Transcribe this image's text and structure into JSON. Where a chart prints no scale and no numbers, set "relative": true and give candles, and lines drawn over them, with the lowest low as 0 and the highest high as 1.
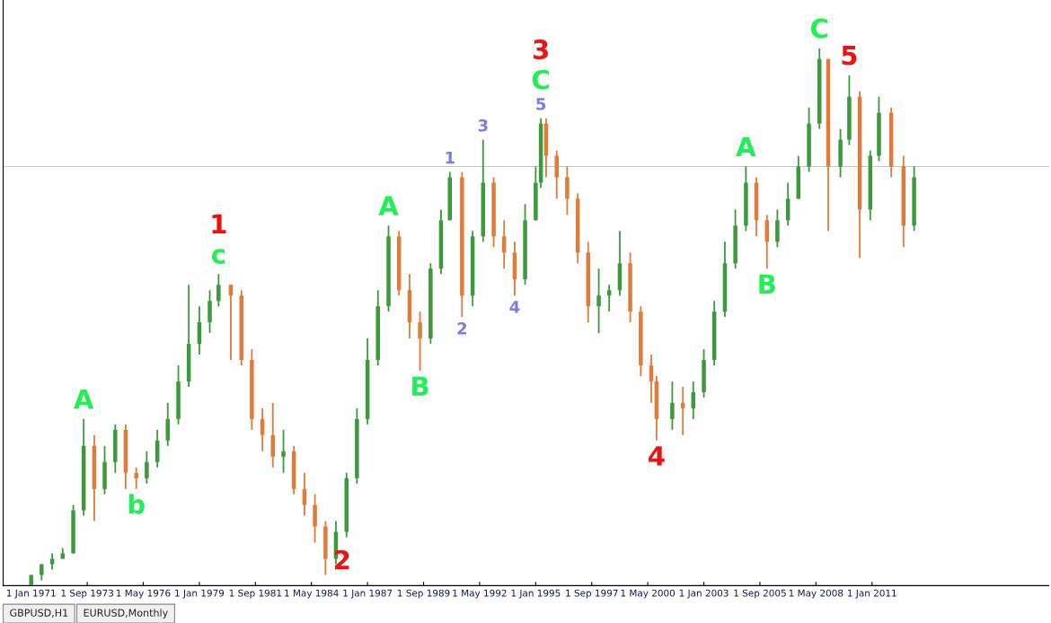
{
  "chart_data": {
    "type": "candlestick",
    "relative": true,
    "x": [
      "1971-01",
      "1971-07",
      "1972-01",
      "1972-07",
      "1973-01",
      "1973-07",
      "1974-01",
      "1974-07",
      "1975-01",
      "1975-07",
      "1976-01",
      "1976-07",
      "1977-01",
      "1977-07",
      "1978-01",
      "1978-07",
      "1979-01",
      "1979-07",
      "1979-12",
      "1980-07",
      "1981-01",
      "1981-07",
      "1982-01",
      "1982-07",
      "1983-01",
      "1983-07",
      "1984-01",
      "1984-07",
      "1985-01",
      "1985-07",
      "1986-01",
      "1986-07",
      "1987-01",
      "1987-07",
      "1988-01",
      "1988-07",
      "1989-01",
      "1989-07",
      "1990-01",
      "1990-07",
      "1990-12",
      "1991-07",
      "1992-01",
      "1992-07",
      "1993-01",
      "1993-07",
      "1994-01",
      "1994-07",
      "1995-01",
      "1995-04",
      "1995-07",
      "1996-01",
      "1996-07",
      "1997-01",
      "1997-07",
      "1998-01",
      "1998-07",
      "1999-01",
      "1999-07",
      "2000-01",
      "2000-07",
      "2000-10",
      "2001-07",
      "2002-01",
      "2002-07",
      "2003-01",
      "2003-07",
      "2004-01",
      "2004-07",
      "2005-01",
      "2005-07",
      "2006-01",
      "2006-07",
      "2007-01",
      "2007-07",
      "2008-01",
      "2008-07",
      "2008-12",
      "2009-07",
      "2009-12",
      "2010-06",
      "2010-12",
      "2011-05",
      "2011-12",
      "2012-07",
      "2013-01"
    ],
    "ohlc": [
      [
        0.0,
        0.02,
        0.0,
        0.02
      ],
      [
        0.02,
        0.04,
        0.01,
        0.04
      ],
      [
        0.04,
        0.06,
        0.03,
        0.05
      ],
      [
        0.05,
        0.07,
        0.05,
        0.06
      ],
      [
        0.06,
        0.15,
        0.06,
        0.14
      ],
      [
        0.14,
        0.31,
        0.13,
        0.26
      ],
      [
        0.26,
        0.28,
        0.12,
        0.18
      ],
      [
        0.18,
        0.26,
        0.17,
        0.23
      ],
      [
        0.23,
        0.3,
        0.21,
        0.29
      ],
      [
        0.29,
        0.3,
        0.18,
        0.21
      ],
      [
        0.21,
        0.22,
        0.18,
        0.2
      ],
      [
        0.2,
        0.25,
        0.19,
        0.23
      ],
      [
        0.23,
        0.29,
        0.22,
        0.27
      ],
      [
        0.27,
        0.34,
        0.26,
        0.31
      ],
      [
        0.31,
        0.41,
        0.3,
        0.38
      ],
      [
        0.38,
        0.56,
        0.37,
        0.45
      ],
      [
        0.45,
        0.52,
        0.43,
        0.49
      ],
      [
        0.49,
        0.55,
        0.47,
        0.53
      ],
      [
        0.53,
        0.58,
        0.52,
        0.56
      ],
      [
        0.56,
        0.56,
        0.42,
        0.54
      ],
      [
        0.54,
        0.55,
        0.41,
        0.42
      ],
      [
        0.42,
        0.44,
        0.29,
        0.31
      ],
      [
        0.31,
        0.33,
        0.25,
        0.28
      ],
      [
        0.28,
        0.34,
        0.22,
        0.24
      ],
      [
        0.24,
        0.29,
        0.21,
        0.25
      ],
      [
        0.25,
        0.26,
        0.17,
        0.18
      ],
      [
        0.18,
        0.21,
        0.13,
        0.15
      ],
      [
        0.15,
        0.17,
        0.08,
        0.11
      ],
      [
        0.11,
        0.12,
        0.02,
        0.05
      ],
      [
        0.05,
        0.12,
        0.04,
        0.1
      ],
      [
        0.1,
        0.21,
        0.09,
        0.2
      ],
      [
        0.2,
        0.33,
        0.19,
        0.31
      ],
      [
        0.31,
        0.46,
        0.3,
        0.42
      ],
      [
        0.42,
        0.55,
        0.41,
        0.52
      ],
      [
        0.52,
        0.67,
        0.51,
        0.65
      ],
      [
        0.65,
        0.66,
        0.54,
        0.55
      ],
      [
        0.55,
        0.58,
        0.46,
        0.49
      ],
      [
        0.49,
        0.51,
        0.4,
        0.46
      ],
      [
        0.46,
        0.6,
        0.45,
        0.59
      ],
      [
        0.59,
        0.7,
        0.58,
        0.68
      ],
      [
        0.68,
        0.77,
        0.68,
        0.76
      ],
      [
        0.76,
        0.77,
        0.5,
        0.54
      ],
      [
        0.54,
        0.66,
        0.52,
        0.65
      ],
      [
        0.65,
        0.83,
        0.64,
        0.75
      ],
      [
        0.75,
        0.76,
        0.63,
        0.65
      ],
      [
        0.65,
        0.68,
        0.59,
        0.62
      ],
      [
        0.62,
        0.64,
        0.54,
        0.57
      ],
      [
        0.57,
        0.71,
        0.56,
        0.68
      ],
      [
        0.68,
        0.78,
        0.68,
        0.75
      ],
      [
        0.75,
        0.87,
        0.74,
        0.86
      ],
      [
        0.86,
        0.87,
        0.76,
        0.8
      ],
      [
        0.8,
        0.81,
        0.72,
        0.76
      ],
      [
        0.76,
        0.78,
        0.69,
        0.72
      ],
      [
        0.72,
        0.73,
        0.6,
        0.62
      ],
      [
        0.62,
        0.64,
        0.49,
        0.52
      ],
      [
        0.52,
        0.59,
        0.47,
        0.54
      ],
      [
        0.54,
        0.56,
        0.51,
        0.55
      ],
      [
        0.55,
        0.66,
        0.54,
        0.6
      ],
      [
        0.6,
        0.62,
        0.49,
        0.51
      ],
      [
        0.51,
        0.52,
        0.39,
        0.41
      ],
      [
        0.41,
        0.43,
        0.34,
        0.38
      ],
      [
        0.38,
        0.39,
        0.27,
        0.31
      ],
      [
        0.31,
        0.38,
        0.29,
        0.34
      ],
      [
        0.34,
        0.37,
        0.28,
        0.33
      ],
      [
        0.33,
        0.38,
        0.31,
        0.36
      ],
      [
        0.36,
        0.44,
        0.35,
        0.42
      ],
      [
        0.42,
        0.53,
        0.41,
        0.51
      ],
      [
        0.51,
        0.64,
        0.5,
        0.6
      ],
      [
        0.6,
        0.7,
        0.59,
        0.67
      ],
      [
        0.67,
        0.78,
        0.66,
        0.75
      ],
      [
        0.75,
        0.76,
        0.65,
        0.68
      ],
      [
        0.68,
        0.69,
        0.59,
        0.64
      ],
      [
        0.64,
        0.7,
        0.63,
        0.68
      ],
      [
        0.68,
        0.75,
        0.67,
        0.72
      ],
      [
        0.72,
        0.8,
        0.72,
        0.78
      ],
      [
        0.78,
        0.89,
        0.77,
        0.86
      ],
      [
        0.86,
        1.0,
        0.85,
        0.98
      ],
      [
        0.98,
        0.98,
        0.66,
        0.78
      ],
      [
        0.78,
        0.85,
        0.76,
        0.83
      ],
      [
        0.83,
        0.95,
        0.82,
        0.91
      ],
      [
        0.91,
        0.92,
        0.61,
        0.7
      ],
      [
        0.7,
        0.81,
        0.68,
        0.8
      ],
      [
        0.8,
        0.91,
        0.79,
        0.88
      ],
      [
        0.88,
        0.89,
        0.76,
        0.78
      ],
      [
        0.78,
        0.8,
        0.63,
        0.67
      ],
      [
        0.67,
        0.78,
        0.66,
        0.76
      ]
    ],
    "colors": [
      "#3c9a3c",
      "#3c9a3c",
      "#3c9a3c",
      "#3c9a3c",
      "#3c9a3c",
      "#3c9a3c",
      "#e07b39",
      "#3c9a3c",
      "#3c9a3c",
      "#e07b39",
      "#e07b39",
      "#3c9a3c",
      "#3c9a3c",
      "#3c9a3c",
      "#3c9a3c",
      "#3c9a3c",
      "#3c9a3c",
      "#3c9a3c",
      "#3c9a3c",
      "#e07b39",
      "#e07b39",
      "#e07b39",
      "#e07b39",
      "#e07b39",
      "#3c9a3c",
      "#e07b39",
      "#e07b39",
      "#e07b39",
      "#e07b39",
      "#3c9a3c",
      "#3c9a3c",
      "#3c9a3c",
      "#3c9a3c",
      "#3c9a3c",
      "#3c9a3c",
      "#e07b39",
      "#e07b39",
      "#e07b39",
      "#3c9a3c",
      "#3c9a3c",
      "#3c9a3c",
      "#e07b39",
      "#3c9a3c",
      "#3c9a3c",
      "#e07b39",
      "#e07b39",
      "#e07b39",
      "#3c9a3c",
      "#3c9a3c",
      "#3c9a3c",
      "#e07b39",
      "#e07b39",
      "#e07b39",
      "#e07b39",
      "#e07b39",
      "#3c9a3c",
      "#3c9a3c",
      "#3c9a3c",
      "#e07b39",
      "#e07b39",
      "#e07b39",
      "#e07b39",
      "#3c9a3c",
      "#e07b39",
      "#3c9a3c",
      "#3c9a3c",
      "#3c9a3c",
      "#3c9a3c",
      "#3c9a3c",
      "#3c9a3c",
      "#e07b39",
      "#e07b39",
      "#3c9a3c",
      "#3c9a3c",
      "#3c9a3c",
      "#3c9a3c",
      "#3c9a3c",
      "#e07b39",
      "#3c9a3c",
      "#3c9a3c",
      "#e07b39",
      "#3c9a3c",
      "#3c9a3c",
      "#e07b39",
      "#e07b39",
      "#3c9a3c"
    ],
    "xlim": [
      "1969-09",
      "2019-06"
    ],
    "xticks": [
      {
        "value": "1971-01-01",
        "label": "1 Jan 1971"
      },
      {
        "value": "1973-09-01",
        "label": "1 Sep 1973"
      },
      {
        "value": "1976-05-01",
        "label": "1 May 1976"
      },
      {
        "value": "1979-01-01",
        "label": "1 Jan 1979"
      },
      {
        "value": "1981-09-01",
        "label": "1 Sep 1981"
      },
      {
        "value": "1984-05-01",
        "label": "1 May 1984"
      },
      {
        "value": "1987-01-01",
        "label": "1 Jan 1987"
      },
      {
        "value": "1989-09-01",
        "label": "1 Sep 1989"
      },
      {
        "value": "1992-05-01",
        "label": "1 May 1992"
      },
      {
        "value": "1995-01-01",
        "label": "1 Jan 1995"
      },
      {
        "value": "1997-09-01",
        "label": "1 Sep 1997"
      },
      {
        "value": "2000-05-01",
        "label": "1 May 2000"
      },
      {
        "value": "2003-01-01",
        "label": "1 Jan 2003"
      },
      {
        "value": "2005-09-01",
        "label": "1 Sep 2005"
      },
      {
        "value": "2008-05-01",
        "label": "1 May 2008"
      },
      {
        "value": "2011-01-01",
        "label": "1 Jan 2011"
      }
    ],
    "ref_lines": [
      {
        "axis": "y",
        "value": 0.78,
        "color": "#c8c8c8"
      }
    ],
    "tick_labels": "x",
    "annotations": [
      {
        "text": "A",
        "x": "1973-07",
        "y": 0.31
      },
      {
        "text": "b",
        "x": "1976-01",
        "y": 0.18
      },
      {
        "text": "c",
        "x": "1979-12",
        "y": 0.58
      },
      {
        "text": "1",
        "x": "1979-12",
        "y": 0.58
      },
      {
        "text": "2",
        "x": "1985-01",
        "y": 0.02
      },
      {
        "text": "A",
        "x": "1988-01",
        "y": 0.67
      },
      {
        "text": "B",
        "x": "1989-07",
        "y": 0.4
      },
      {
        "text": "1",
        "x": "1990-12",
        "y": 0.77
      },
      {
        "text": "2",
        "x": "1991-07",
        "y": 0.5
      },
      {
        "text": "3",
        "x": "1992-07",
        "y": 0.83
      },
      {
        "text": "4",
        "x": "1994-01",
        "y": 0.54
      },
      {
        "text": "5",
        "x": "1995-04",
        "y": 0.87
      },
      {
        "text": "C",
        "x": "1995-04",
        "y": 0.87
      },
      {
        "text": "3",
        "x": "1995-04",
        "y": 0.87
      },
      {
        "text": "4",
        "x": "2000-10",
        "y": 0.27
      },
      {
        "text": "A",
        "x": "2005-01",
        "y": 0.78
      },
      {
        "text": "B",
        "x": "2006-01",
        "y": 0.59
      },
      {
        "text": "C",
        "x": "2008-07",
        "y": 1.0
      },
      {
        "text": "5",
        "x": "2009-12",
        "y": 0.95
      },
      "GBPUSD,H1",
      "EURUSD,Monthly"
    ]
  }
}
